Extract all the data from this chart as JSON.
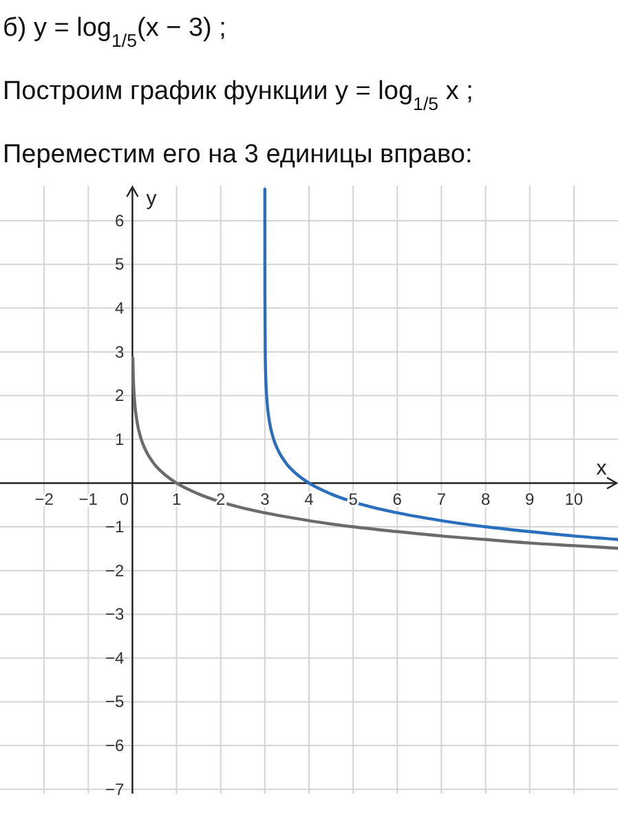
{
  "chart_data": {
    "type": "line",
    "title": "б) y = log$_{1/5}$(x − 3) ;",
    "annotations": [
      "Построим график функции y = log$_{1/5}$ x ;",
      "Переместим его на 3 единицы вправо:"
    ],
    "xlabel": "x",
    "ylabel": "y",
    "xlim": [
      -3,
      11
    ],
    "ylim": [
      -7.1,
      6.8
    ],
    "xticks": [
      -2,
      -1,
      0,
      1,
      2,
      3,
      4,
      5,
      6,
      7,
      8,
      9,
      10
    ],
    "yticks": [
      -7,
      -6,
      -5,
      -4,
      -3,
      -2,
      -1,
      1,
      2,
      3,
      4,
      5,
      6
    ],
    "grid": true,
    "marker": "none",
    "line_style": "solid",
    "series": [
      {
        "color": "#6b6b6b",
        "x": [
          0.01,
          0.02,
          0.05,
          0.1,
          0.2,
          0.3,
          0.5,
          0.75,
          1,
          1.5,
          2,
          3,
          4,
          5,
          6,
          7,
          8,
          9,
          10,
          11
        ],
        "values": [
          2.86,
          2.43,
          1.86,
          1.43,
          1,
          0.75,
          0.43,
          0.18,
          0,
          -0.25,
          -0.43,
          -0.68,
          -0.86,
          -1,
          -1.11,
          -1.21,
          -1.29,
          -1.37,
          -1.43,
          -1.49
        ]
      },
      {
        "color": "#2a6fbd",
        "x": [
          3.00002,
          3.0001,
          3.001,
          3.01,
          3.02,
          3.05,
          3.1,
          3.2,
          3.3,
          3.5,
          3.75,
          4,
          4.5,
          5,
          6,
          7,
          8,
          9,
          10,
          11
        ],
        "values": [
          6.72,
          5.72,
          4.29,
          2.86,
          2.43,
          1.86,
          1.43,
          1,
          0.75,
          0.43,
          0.18,
          0,
          -0.25,
          -0.43,
          -0.68,
          -0.86,
          -1,
          -1.11,
          -1.21,
          -1.29
        ]
      }
    ]
  }
}
